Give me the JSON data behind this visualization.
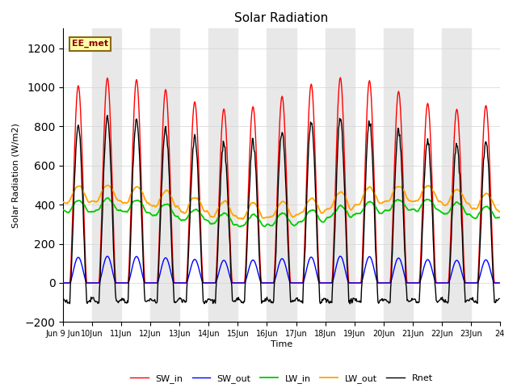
{
  "title": "Solar Radiation",
  "xlabel": "Time",
  "ylabel": "Solar Radiation (W/m2)",
  "ylim": [
    -200,
    1300
  ],
  "yticks": [
    -200,
    0,
    200,
    400,
    600,
    800,
    1000,
    1200
  ],
  "annotation": "EE_met",
  "n_days": 15,
  "start_day": 9,
  "colors": {
    "SW_in": "#ff0000",
    "SW_out": "#0000ff",
    "LW_in": "#00cc00",
    "LW_out": "#ffa500",
    "Rnet": "#000000"
  },
  "band_color": "#e8e8e8",
  "figsize": [
    6.4,
    4.8
  ],
  "dpi": 100
}
